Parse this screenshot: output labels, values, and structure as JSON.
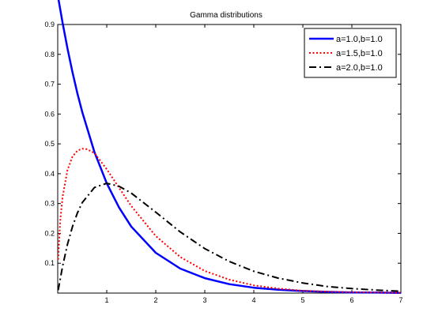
{
  "chart_data": {
    "type": "line",
    "title": "Gamma distributions",
    "xlabel": "",
    "ylabel": "",
    "xlim": [
      0,
      7
    ],
    "ylim": [
      0,
      0.9
    ],
    "xticks": [
      1,
      2,
      3,
      4,
      5,
      6,
      7
    ],
    "yticks": [
      0.1,
      0.2,
      0.3,
      0.4,
      0.5,
      0.6,
      0.7,
      0.8,
      0.9
    ],
    "grid": false,
    "legend_position": "top-right",
    "series": [
      {
        "name": "a=1.0,b=1.0",
        "color": "#0000ff",
        "style": "solid",
        "x": [
          0.01,
          0.1,
          0.2,
          0.3,
          0.4,
          0.5,
          0.75,
          1.0,
          1.25,
          1.5,
          2.0,
          2.5,
          3.0,
          3.5,
          4.0,
          4.5,
          5.0,
          5.5,
          6.0,
          6.5,
          7.0
        ],
        "y": [
          0.99,
          0.905,
          0.819,
          0.741,
          0.67,
          0.607,
          0.472,
          0.368,
          0.287,
          0.223,
          0.135,
          0.082,
          0.05,
          0.03,
          0.018,
          0.011,
          0.007,
          0.004,
          0.002,
          0.0015,
          0.0009
        ]
      },
      {
        "name": "a=1.5,b=1.0",
        "color": "#ff0000",
        "style": "dotted",
        "x": [
          0.01,
          0.05,
          0.1,
          0.2,
          0.3,
          0.4,
          0.5,
          0.6,
          0.75,
          1.0,
          1.25,
          1.5,
          2.0,
          2.5,
          3.0,
          3.5,
          4.0,
          4.5,
          5.0,
          5.5,
          6.0,
          6.5,
          7.0
        ],
        "y": [
          0.112,
          0.241,
          0.323,
          0.413,
          0.457,
          0.477,
          0.484,
          0.482,
          0.469,
          0.415,
          0.353,
          0.292,
          0.191,
          0.121,
          0.074,
          0.045,
          0.026,
          0.015,
          0.008,
          0.005,
          0.003,
          0.002,
          0.001
        ]
      },
      {
        "name": "a=2.0,b=1.0",
        "color": "#000000",
        "style": "dashdot",
        "x": [
          0.01,
          0.1,
          0.2,
          0.3,
          0.4,
          0.5,
          0.75,
          1.0,
          1.25,
          1.5,
          2.0,
          2.5,
          3.0,
          3.5,
          4.0,
          4.5,
          5.0,
          5.5,
          6.0,
          6.5,
          7.0
        ],
        "y": [
          0.0099,
          0.0905,
          0.164,
          0.222,
          0.268,
          0.303,
          0.354,
          0.368,
          0.358,
          0.335,
          0.271,
          0.205,
          0.149,
          0.106,
          0.073,
          0.05,
          0.034,
          0.022,
          0.015,
          0.01,
          0.006
        ]
      }
    ]
  }
}
